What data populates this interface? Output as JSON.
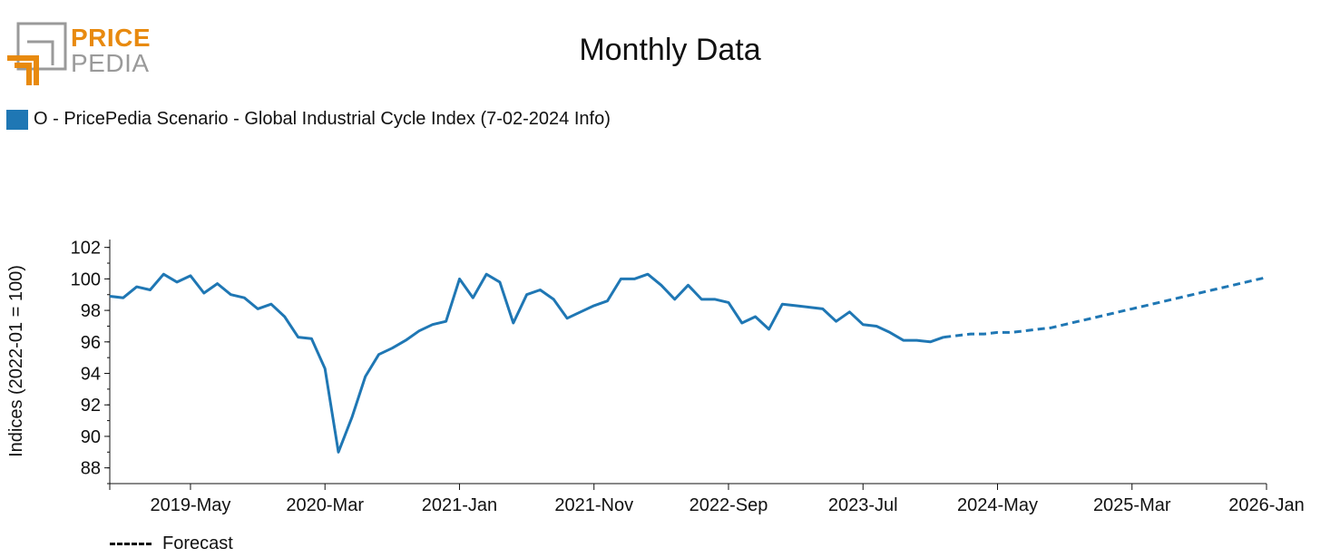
{
  "brand": {
    "line1": "PRICE",
    "line2": "PEDIA",
    "colors": {
      "orange": "#e88a0f",
      "gray": "#9a9a9a"
    }
  },
  "chart_data": {
    "type": "line",
    "title": "Monthly Data",
    "ylabel": "Indices (2022-01 = 100)",
    "xlabel": "",
    "ylim": [
      87,
      102.5
    ],
    "yticks": [
      88,
      90,
      92,
      94,
      96,
      98,
      100,
      102
    ],
    "x_range": [
      "2018-11",
      "2026-01"
    ],
    "xticks": [
      "2019-May",
      "2020-Mar",
      "2021-Jan",
      "2021-Nov",
      "2022-Sep",
      "2023-Jul",
      "2024-May",
      "2025-Mar",
      "2026-Jan"
    ],
    "legend": {
      "placement": "top-left",
      "forecast_label": "Forecast"
    },
    "series": [
      {
        "name": "O - PricePedia Scenario - Global Industrial Cycle Index (7-02-2024 Info)",
        "color": "#1f77b4",
        "x": [
          "2018-11",
          "2018-12",
          "2019-01",
          "2019-02",
          "2019-03",
          "2019-04",
          "2019-05",
          "2019-06",
          "2019-07",
          "2019-08",
          "2019-09",
          "2019-10",
          "2019-11",
          "2019-12",
          "2020-01",
          "2020-02",
          "2020-03",
          "2020-04",
          "2020-05",
          "2020-06",
          "2020-07",
          "2020-08",
          "2020-09",
          "2020-10",
          "2020-11",
          "2020-12",
          "2021-01",
          "2021-02",
          "2021-03",
          "2021-04",
          "2021-05",
          "2021-06",
          "2021-07",
          "2021-08",
          "2021-09",
          "2021-10",
          "2021-11",
          "2021-12",
          "2022-01",
          "2022-02",
          "2022-03",
          "2022-04",
          "2022-05",
          "2022-06",
          "2022-07",
          "2022-08",
          "2022-09",
          "2022-10",
          "2022-11",
          "2022-12",
          "2023-01",
          "2023-02",
          "2023-03",
          "2023-04",
          "2023-05",
          "2023-06",
          "2023-07",
          "2023-08",
          "2023-09",
          "2023-10",
          "2023-11",
          "2023-12",
          "2024-01"
        ],
        "values": [
          98.9,
          98.8,
          99.5,
          99.3,
          100.3,
          99.8,
          100.2,
          99.1,
          99.7,
          99.0,
          98.8,
          98.1,
          98.4,
          97.6,
          96.3,
          96.2,
          94.3,
          89.0,
          91.2,
          93.8,
          95.2,
          95.6,
          96.1,
          96.7,
          97.1,
          97.3,
          100.0,
          98.8,
          100.3,
          99.8,
          97.2,
          99.0,
          99.3,
          98.7,
          97.5,
          97.9,
          98.3,
          98.6,
          100.0,
          100.0,
          100.3,
          99.6,
          98.7,
          99.6,
          98.7,
          98.7,
          98.5,
          97.2,
          97.6,
          96.8,
          98.4,
          98.3,
          98.2,
          98.1,
          97.3,
          97.9,
          97.1,
          97.0,
          96.6,
          96.1,
          96.1,
          96.0,
          96.3
        ]
      },
      {
        "name": "Forecast",
        "color": "#1f77b4",
        "dashed": true,
        "x": [
          "2024-01",
          "2024-02",
          "2024-03",
          "2024-04",
          "2024-05",
          "2024-06",
          "2024-07",
          "2024-08",
          "2024-09",
          "2024-10",
          "2024-11",
          "2024-12",
          "2025-01",
          "2025-02",
          "2025-03",
          "2025-04",
          "2025-05",
          "2025-06",
          "2025-07",
          "2025-08",
          "2025-09",
          "2025-10",
          "2025-11",
          "2025-12",
          "2026-01"
        ],
        "values": [
          96.3,
          96.4,
          96.5,
          96.5,
          96.6,
          96.6,
          96.7,
          96.8,
          96.9,
          97.1,
          97.3,
          97.5,
          97.7,
          97.9,
          98.1,
          98.3,
          98.5,
          98.7,
          98.9,
          99.1,
          99.3,
          99.5,
          99.7,
          99.9,
          100.1
        ]
      }
    ]
  }
}
